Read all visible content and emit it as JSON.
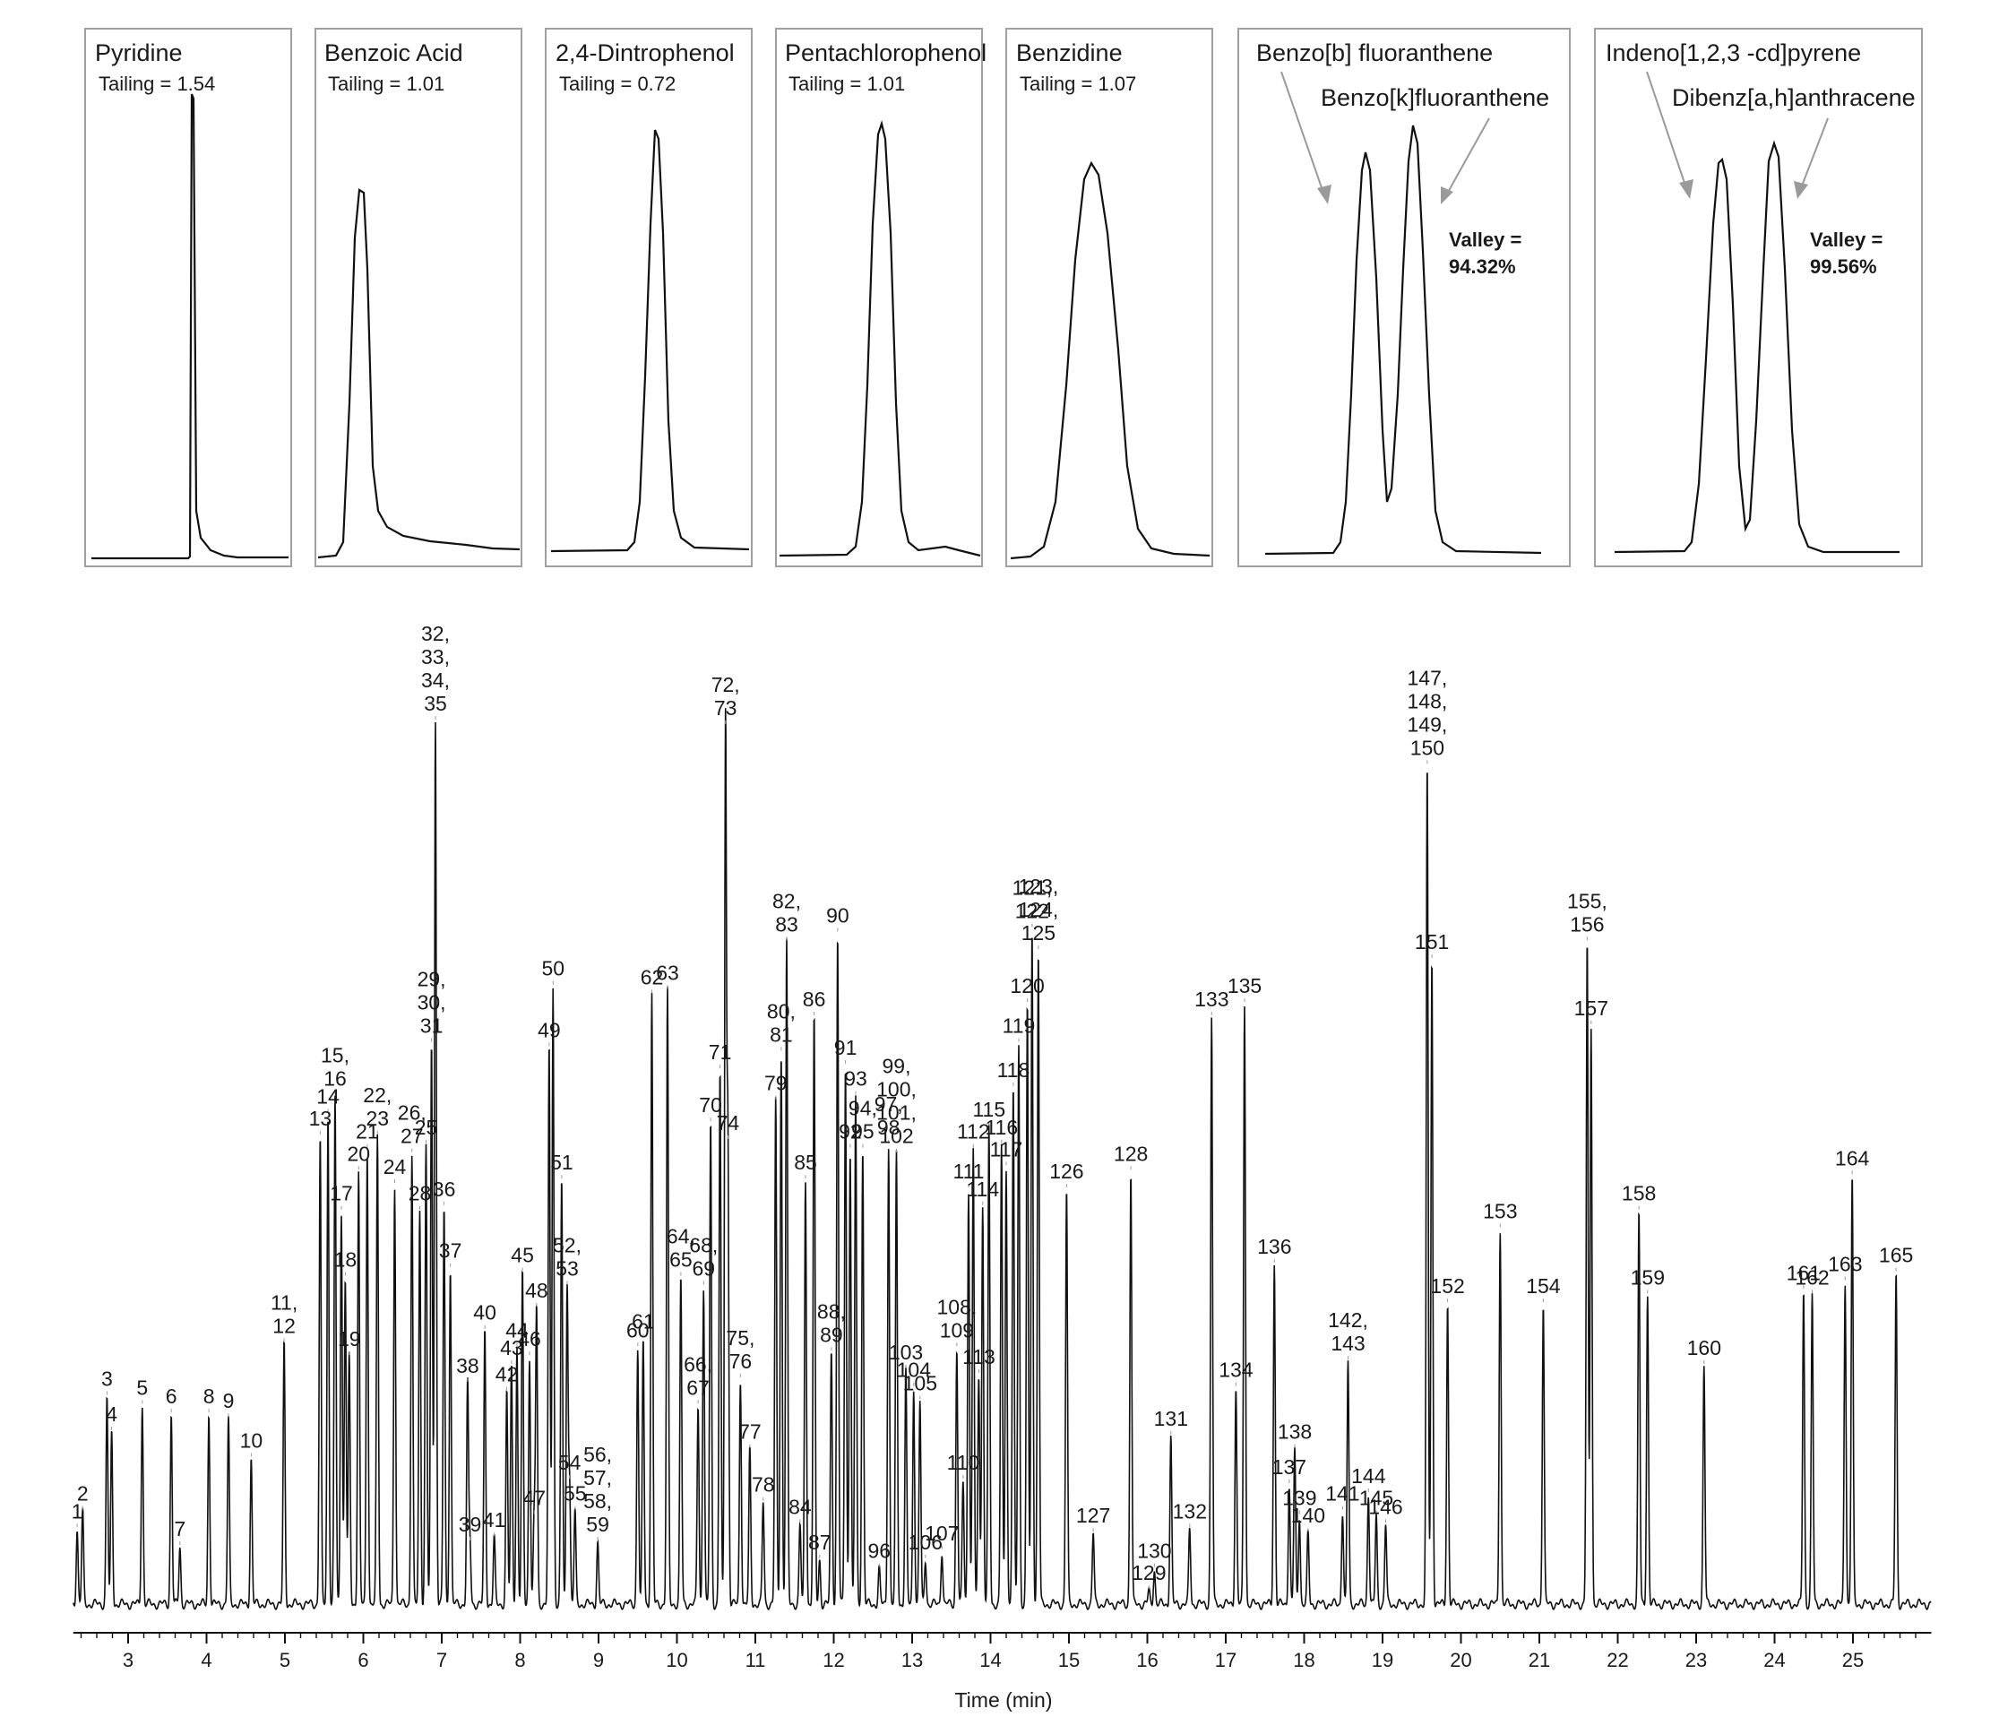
{
  "chart_data": {
    "type": "line",
    "xlabel": "Time (min)",
    "xlim": [
      2.3,
      26.0
    ],
    "ylim": [
      0,
      100
    ],
    "x_ticks": [
      "3",
      "4",
      "5",
      "6",
      "7",
      "8",
      "9",
      "10",
      "11",
      "12",
      "13",
      "14",
      "15",
      "16",
      "17",
      "18",
      "19",
      "20",
      "21",
      "22",
      "23",
      "24",
      "25"
    ],
    "series": [
      {
        "peaks": [
          {
            "label": "1",
            "x": 2.35,
            "y": 8.5
          },
          {
            "label": "2",
            "x": 2.42,
            "y": 10.5
          },
          {
            "label": "3",
            "x": 2.73,
            "y": 23.5
          },
          {
            "label": "4",
            "x": 2.79,
            "y": 19.5
          },
          {
            "label": "5",
            "x": 3.18,
            "y": 22.5
          },
          {
            "label": "6",
            "x": 3.55,
            "y": 21.5
          },
          {
            "label": "7",
            "x": 3.66,
            "y": 6.5
          },
          {
            "label": "8",
            "x": 4.03,
            "y": 21.5
          },
          {
            "label": "9",
            "x": 4.28,
            "y": 21.0
          },
          {
            "label": "10",
            "x": 4.57,
            "y": 16.5
          },
          {
            "label": "11, 12",
            "x": 4.99,
            "y": 29.5
          },
          {
            "label": "13",
            "x": 5.45,
            "y": 53.0
          },
          {
            "label": "14",
            "x": 5.55,
            "y": 55.5
          },
          {
            "label": "15, 16",
            "x": 5.64,
            "y": 57.5
          },
          {
            "label": "17",
            "x": 5.72,
            "y": 44.5
          },
          {
            "label": "18",
            "x": 5.77,
            "y": 37.0
          },
          {
            "label": "19",
            "x": 5.82,
            "y": 28.0
          },
          {
            "label": "20",
            "x": 5.94,
            "y": 49.0
          },
          {
            "label": "21",
            "x": 6.05,
            "y": 51.5
          },
          {
            "label": "22, 23",
            "x": 6.18,
            "y": 53.0
          },
          {
            "label": "24",
            "x": 6.4,
            "y": 47.5
          },
          {
            "label": "26, 27",
            "x": 6.62,
            "y": 51.0
          },
          {
            "label": "28",
            "x": 6.72,
            "y": 44.5
          },
          {
            "label": "25",
            "x": 6.8,
            "y": 52.0
          },
          {
            "label": "29, 30, 31",
            "x": 6.87,
            "y": 63.5
          },
          {
            "label": "32, 33, 34, 35",
            "x": 6.92,
            "y": 100
          },
          {
            "label": "36",
            "x": 7.03,
            "y": 45.0
          },
          {
            "label": "37",
            "x": 7.11,
            "y": 38.0
          },
          {
            "label": "38",
            "x": 7.33,
            "y": 25.0
          },
          {
            "label": "39",
            "x": 7.36,
            "y": 7.0
          },
          {
            "label": "40",
            "x": 7.55,
            "y": 31.0
          },
          {
            "label": "41",
            "x": 7.67,
            "y": 7.5
          },
          {
            "label": "42",
            "x": 7.83,
            "y": 24.0
          },
          {
            "label": "43",
            "x": 7.89,
            "y": 27.0
          },
          {
            "label": "44",
            "x": 7.96,
            "y": 29.0
          },
          {
            "label": "45",
            "x": 8.03,
            "y": 37.5
          },
          {
            "label": "46",
            "x": 8.12,
            "y": 28.0
          },
          {
            "label": "47",
            "x": 8.18,
            "y": 10.0
          },
          {
            "label": "48",
            "x": 8.21,
            "y": 33.5
          },
          {
            "label": "49",
            "x": 8.37,
            "y": 63.0
          },
          {
            "label": "50",
            "x": 8.42,
            "y": 70.0
          },
          {
            "label": "51",
            "x": 8.53,
            "y": 48.0
          },
          {
            "label": "52, 53",
            "x": 8.6,
            "y": 36.0
          },
          {
            "label": "54",
            "x": 8.63,
            "y": 14.0
          },
          {
            "label": "55",
            "x": 8.7,
            "y": 10.5
          },
          {
            "label": "56, 57, 58, 59",
            "x": 8.99,
            "y": 7.0
          },
          {
            "label": "60",
            "x": 9.5,
            "y": 29.0
          },
          {
            "label": "61",
            "x": 9.57,
            "y": 30.0
          },
          {
            "label": "62",
            "x": 9.68,
            "y": 69.0
          },
          {
            "label": "63",
            "x": 9.88,
            "y": 69.5
          },
          {
            "label": "64, 65",
            "x": 10.05,
            "y": 37.0
          },
          {
            "label": "66, 67",
            "x": 10.27,
            "y": 22.5
          },
          {
            "label": "68, 69",
            "x": 10.34,
            "y": 36.0
          },
          {
            "label": "70",
            "x": 10.43,
            "y": 54.5
          },
          {
            "label": "71",
            "x": 10.55,
            "y": 60.5
          },
          {
            "label": "72, 73",
            "x": 10.62,
            "y": 99.5
          },
          {
            "label": "74",
            "x": 10.65,
            "y": 52.5
          },
          {
            "label": "75, 76",
            "x": 10.81,
            "y": 25.5
          },
          {
            "label": "77",
            "x": 10.93,
            "y": 17.5
          },
          {
            "label": "78",
            "x": 11.1,
            "y": 11.5
          },
          {
            "label": "79",
            "x": 11.26,
            "y": 57.0
          },
          {
            "label": "80, 81",
            "x": 11.33,
            "y": 62.5
          },
          {
            "label": "82, 83",
            "x": 11.4,
            "y": 75.0
          },
          {
            "label": "84",
            "x": 11.57,
            "y": 9.0
          },
          {
            "label": "85",
            "x": 11.64,
            "y": 48.0
          },
          {
            "label": "86",
            "x": 11.75,
            "y": 66.5
          },
          {
            "label": "87",
            "x": 11.82,
            "y": 5.0
          },
          {
            "label": "88, 89",
            "x": 11.97,
            "y": 28.5
          },
          {
            "label": "90",
            "x": 12.05,
            "y": 76.0
          },
          {
            "label": "91",
            "x": 12.15,
            "y": 61.0
          },
          {
            "label": "92",
            "x": 12.21,
            "y": 51.5
          },
          {
            "label": "93",
            "x": 12.28,
            "y": 57.5
          },
          {
            "label": "94, 95",
            "x": 12.37,
            "y": 51.5
          },
          {
            "label": "96",
            "x": 12.58,
            "y": 4.0
          },
          {
            "label": "97, 98",
            "x": 12.7,
            "y": 52.0
          },
          {
            "label": "99,100, 101,102",
            "x": 12.8,
            "y": 51.0
          },
          {
            "label": "103",
            "x": 12.92,
            "y": 26.5
          },
          {
            "label": "104",
            "x": 13.02,
            "y": 24.5
          },
          {
            "label": "105",
            "x": 13.1,
            "y": 23.0
          },
          {
            "label": "106",
            "x": 13.17,
            "y": 5.0
          },
          {
            "label": "107",
            "x": 13.38,
            "y": 6.0
          },
          {
            "label": "108, 109",
            "x": 13.57,
            "y": 29.0
          },
          {
            "label": "110",
            "x": 13.65,
            "y": 14.0
          },
          {
            "label": "111",
            "x": 13.72,
            "y": 47.0
          },
          {
            "label": "112",
            "x": 13.78,
            "y": 51.5
          },
          {
            "label": "113",
            "x": 13.85,
            "y": 26.0
          },
          {
            "label": "114",
            "x": 13.9,
            "y": 45.0
          },
          {
            "label": "115",
            "x": 13.98,
            "y": 54.0
          },
          {
            "label": "116",
            "x": 14.14,
            "y": 52.0
          },
          {
            "label": "117",
            "x": 14.2,
            "y": 49.5
          },
          {
            "label": "118",
            "x": 14.29,
            "y": 58.5
          },
          {
            "label": "119",
            "x": 14.36,
            "y": 63.5
          },
          {
            "label": "120",
            "x": 14.47,
            "y": 68.0
          },
          {
            "label": "121, 122",
            "x": 14.53,
            "y": 76.5
          },
          {
            "label": "123, 124, 125",
            "x": 14.61,
            "y": 74.0
          },
          {
            "label": "126",
            "x": 14.97,
            "y": 47.0
          },
          {
            "label": "127",
            "x": 15.31,
            "y": 8.0
          },
          {
            "label": "128",
            "x": 15.79,
            "y": 49.0
          },
          {
            "label": "129",
            "x": 16.02,
            "y": 1.5
          },
          {
            "label": "130",
            "x": 16.09,
            "y": 4.0
          },
          {
            "label": "131",
            "x": 16.3,
            "y": 19.0
          },
          {
            "label": "132",
            "x": 16.54,
            "y": 8.5
          },
          {
            "label": "133",
            "x": 16.82,
            "y": 66.5
          },
          {
            "label": "134",
            "x": 17.13,
            "y": 24.5
          },
          {
            "label": "135",
            "x": 17.24,
            "y": 68.0
          },
          {
            "label": "136",
            "x": 17.62,
            "y": 38.5
          },
          {
            "label": "137",
            "x": 17.81,
            "y": 13.5
          },
          {
            "label": "138",
            "x": 17.88,
            "y": 17.5
          },
          {
            "label": "139",
            "x": 17.94,
            "y": 10.0
          },
          {
            "label": "140",
            "x": 18.05,
            "y": 8.0
          },
          {
            "label": "141",
            "x": 18.49,
            "y": 10.5
          },
          {
            "label": "142, 143",
            "x": 18.56,
            "y": 27.5
          },
          {
            "label": "144",
            "x": 18.82,
            "y": 12.5
          },
          {
            "label": "145",
            "x": 18.92,
            "y": 10.0
          },
          {
            "label": "146",
            "x": 19.04,
            "y": 9.0
          },
          {
            "label": "147, 148, 149, 150",
            "x": 19.57,
            "y": 95.0
          },
          {
            "label": "151",
            "x": 19.63,
            "y": 73.0
          },
          {
            "label": "152",
            "x": 19.83,
            "y": 34.0
          },
          {
            "label": "153",
            "x": 20.5,
            "y": 42.5
          },
          {
            "label": "154",
            "x": 21.05,
            "y": 34.0
          },
          {
            "label": "155, 156",
            "x": 21.61,
            "y": 75.0
          },
          {
            "label": "157",
            "x": 21.66,
            "y": 65.5
          },
          {
            "label": "158",
            "x": 22.27,
            "y": 44.5
          },
          {
            "label": "159",
            "x": 22.38,
            "y": 35.0
          },
          {
            "label": "160",
            "x": 23.1,
            "y": 27.0
          },
          {
            "label": "161",
            "x": 24.37,
            "y": 35.5
          },
          {
            "label": "162",
            "x": 24.48,
            "y": 35.0
          },
          {
            "label": "163",
            "x": 24.9,
            "y": 36.5
          },
          {
            "label": "164",
            "x": 24.99,
            "y": 48.5
          },
          {
            "label": "165",
            "x": 25.55,
            "y": 37.5
          }
        ]
      }
    ],
    "insets": [
      {
        "title": "Pyridine",
        "subtitle": "Tailing = 1.54",
        "tailing": 1.54
      },
      {
        "title": "Benzoic Acid",
        "subtitle": "Tailing = 1.01",
        "tailing": 1.01
      },
      {
        "title": "2,4-Dintrophenol",
        "subtitle": "Tailing = 0.72",
        "tailing": 0.72
      },
      {
        "title": "Pentachlorophenol",
        "subtitle": "Tailing = 1.01",
        "tailing": 1.01
      },
      {
        "title": "Benzidine",
        "subtitle": "Tailing = 1.07",
        "tailing": 1.07
      },
      {
        "title": "Benzo[b] fluoranthene",
        "second": "Benzo[k]fluoranthene",
        "valley_label": "Valley =",
        "valley_value": "94.32%"
      },
      {
        "title": "Indeno[1,2,3 -cd]pyrene",
        "second": "Dibenz[a,h]anthracene",
        "valley_label": "Valley =",
        "valley_value": "99.56%"
      }
    ]
  }
}
